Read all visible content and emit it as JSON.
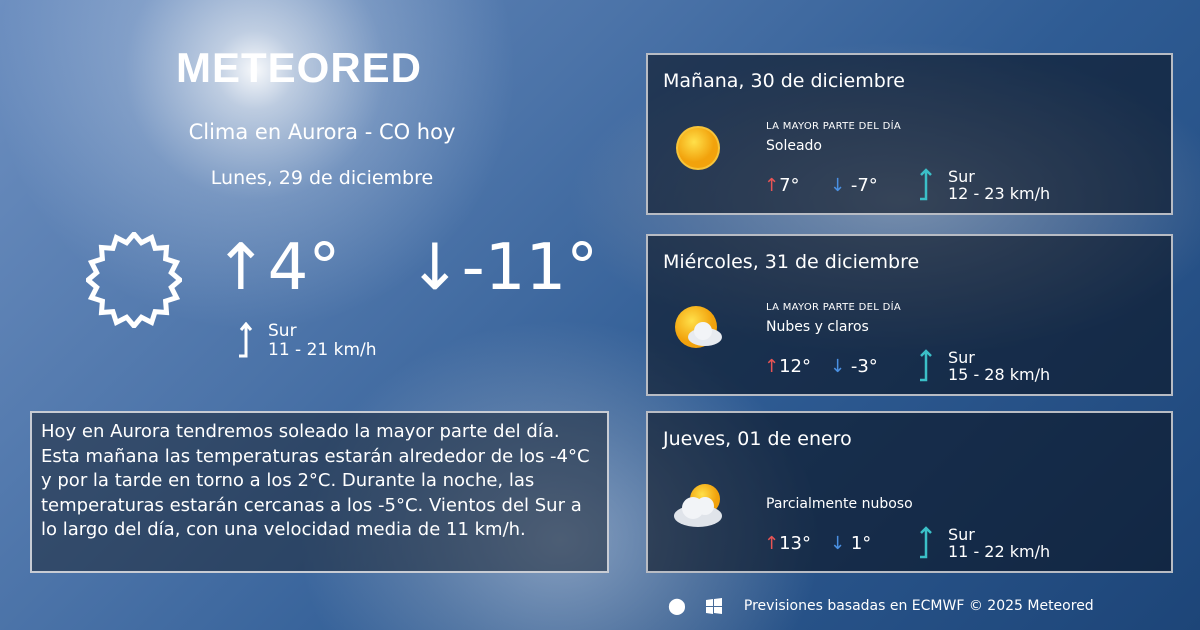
{
  "brand": "METEORED",
  "title": "Clima en Aurora - CO hoy",
  "date": "Lunes, 29 de diciembre",
  "today": {
    "icon": "sun-outline-icon",
    "max": "4°",
    "min": "-11°",
    "wind_dir": "Sur",
    "wind_speed": "11 - 21 km/h"
  },
  "summary": "Hoy en Aurora tendremos soleado la mayor parte del día. Esta mañana las temperaturas estarán alrededor de los -4°C y por la tarde en torno a los 2°C. Durante la noche, las temperaturas estarán cercanas a los -5°C. Vientos del Sur a lo largo del día, con una velocidad media de 11 km/h.",
  "forecast": [
    {
      "day": "Mañana, 30 de diciembre",
      "icon": "sun-icon",
      "part": "LA MAYOR PARTE DEL DÍA",
      "condition": "Soleado",
      "max": "7°",
      "min": "-7°",
      "wind_dir": "Sur",
      "wind_speed": "12 - 23 km/h"
    },
    {
      "day": "Miércoles, 31 de diciembre",
      "icon": "sun-cloud-icon",
      "part": "LA MAYOR PARTE DEL DÍA",
      "condition": "Nubes y claros",
      "max": "12°",
      "min": "-3°",
      "wind_dir": "Sur",
      "wind_speed": "15 - 28 km/h"
    },
    {
      "day": "Jueves, 01 de enero",
      "icon": "cloud-sun-icon",
      "part": "",
      "condition": "Parcialmente nuboso",
      "max": "13°",
      "min": "1°",
      "wind_dir": "Sur",
      "wind_speed": "11 - 22 km/h"
    }
  ],
  "footer": {
    "text": "Previsiones basadas en ECMWF © 2025 Meteored",
    "apps": [
      "android-icon",
      "apple-icon",
      "windows-icon"
    ]
  },
  "colors": {
    "max": "#e85454",
    "min": "#4a90e2",
    "wind": "#3bc0c8"
  }
}
